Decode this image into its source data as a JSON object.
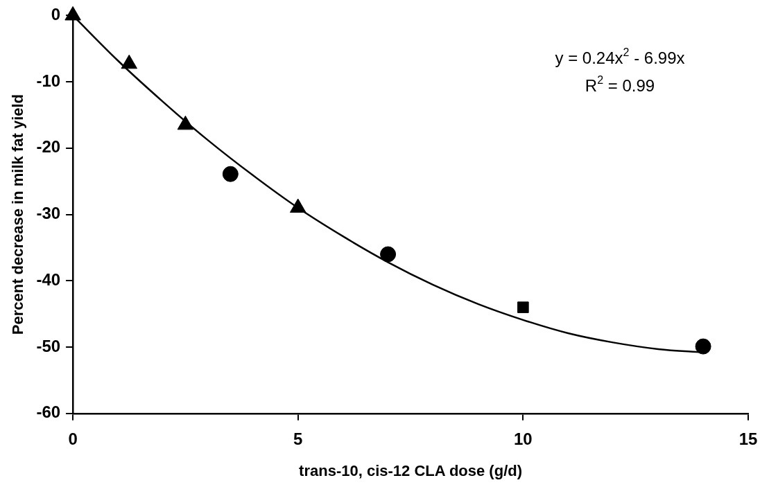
{
  "chart_data": {
    "type": "scatter",
    "xlabel": "trans-10, cis-12 CLA dose (g/d)",
    "ylabel": "Percent decrease in milk fat yield",
    "xlim": [
      0,
      15
    ],
    "xticks": [
      0,
      5,
      10,
      15
    ],
    "ylim": [
      -60,
      0
    ],
    "yticks": [
      -60,
      -50,
      -40,
      -30,
      -20,
      -10,
      0
    ],
    "grid": false,
    "legend": false,
    "series": [
      {
        "color": "#000000",
        "marker": "triangle",
        "x": [
          0,
          1.25,
          2.5,
          5
        ],
        "values": [
          0,
          -7.3,
          -16.5,
          -29
        ]
      },
      {
        "color": "#000000",
        "marker": "circle",
        "x": [
          3.5,
          7,
          14
        ],
        "values": [
          -23.9,
          -36,
          -49.9
        ]
      },
      {
        "color": "#000000",
        "marker": "square",
        "x": [
          10
        ],
        "values": [
          -44
        ]
      },
      {
        "type": "line",
        "color": "#000000",
        "marker": "none",
        "line_style": "solid",
        "x": [
          0,
          1,
          2,
          3,
          4,
          5,
          6,
          7,
          8,
          9,
          10,
          11,
          12,
          13,
          14
        ],
        "values": [
          0,
          -6.8,
          -13,
          -18.8,
          -24.1,
          -29,
          -33.3,
          -37.2,
          -40.6,
          -43.5,
          -45.9,
          -47.9,
          -49.3,
          -50.3,
          -50.8
        ]
      }
    ],
    "annotations": [
      "y = 0.24x$^{2}$ - 6.99x",
      "R$^{2}$ = 0.99"
    ]
  }
}
